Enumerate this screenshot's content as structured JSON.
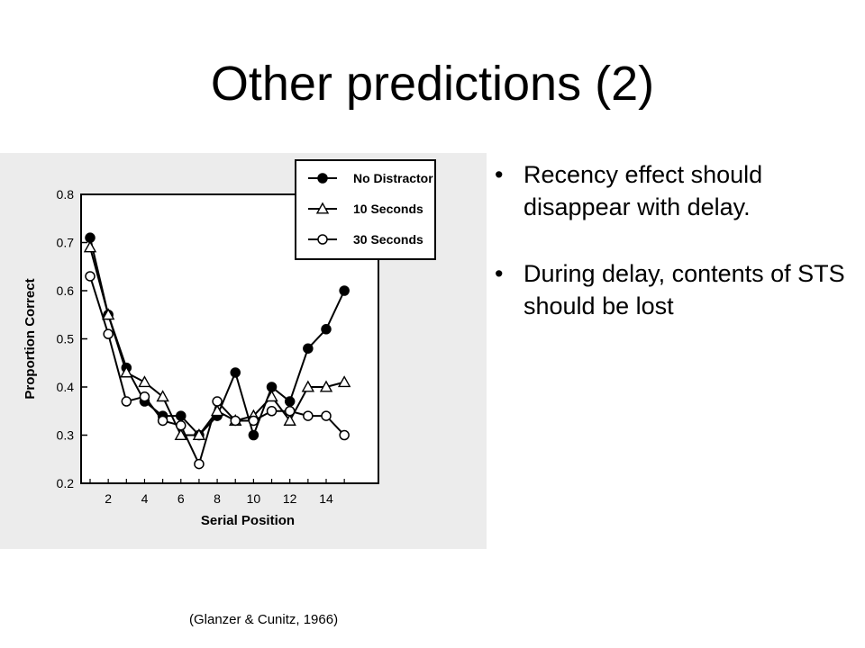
{
  "slide": {
    "title": "Other predictions (2)",
    "citation": "(Glanzer & Cunitz, 1966)",
    "bullets": [
      "Recency effect should disappear with delay.",
      "During delay, contents of STS should be lost"
    ]
  },
  "chart_data": {
    "type": "line",
    "xlabel": "Serial Position",
    "ylabel": "Proportion Correct",
    "xlim": [
      0,
      15.5
    ],
    "ylim": [
      0.2,
      0.8
    ],
    "xticks": [
      2,
      4,
      6,
      8,
      10,
      12,
      14
    ],
    "yticks": [
      0.2,
      0.3,
      0.4,
      0.5,
      0.6,
      0.7,
      0.8
    ],
    "ytick_labels": [
      "0.2",
      "0.3",
      "0.4",
      "0.5",
      "0.6",
      "0.7",
      "0.8"
    ],
    "legend_position": "top-right",
    "x": [
      1,
      2,
      3,
      4,
      5,
      6,
      7,
      8,
      9,
      10,
      11,
      12,
      13,
      14,
      15
    ],
    "series": [
      {
        "name": "No Distractor",
        "marker": "filled-circle",
        "values": [
          0.71,
          0.55,
          0.44,
          0.37,
          0.34,
          0.34,
          0.3,
          0.34,
          0.43,
          0.3,
          0.4,
          0.37,
          0.48,
          0.52,
          0.6
        ]
      },
      {
        "name": "10 Seconds",
        "marker": "open-triangle",
        "values": [
          0.69,
          0.55,
          0.43,
          0.41,
          0.38,
          0.3,
          0.3,
          0.35,
          0.33,
          0.34,
          0.38,
          0.33,
          0.4,
          0.4,
          0.41
        ]
      },
      {
        "name": "30 Seconds",
        "marker": "open-circle",
        "values": [
          0.63,
          0.51,
          0.37,
          0.38,
          0.33,
          0.32,
          0.24,
          0.37,
          0.33,
          0.33,
          0.35,
          0.35,
          0.34,
          0.34,
          0.3
        ]
      }
    ]
  }
}
